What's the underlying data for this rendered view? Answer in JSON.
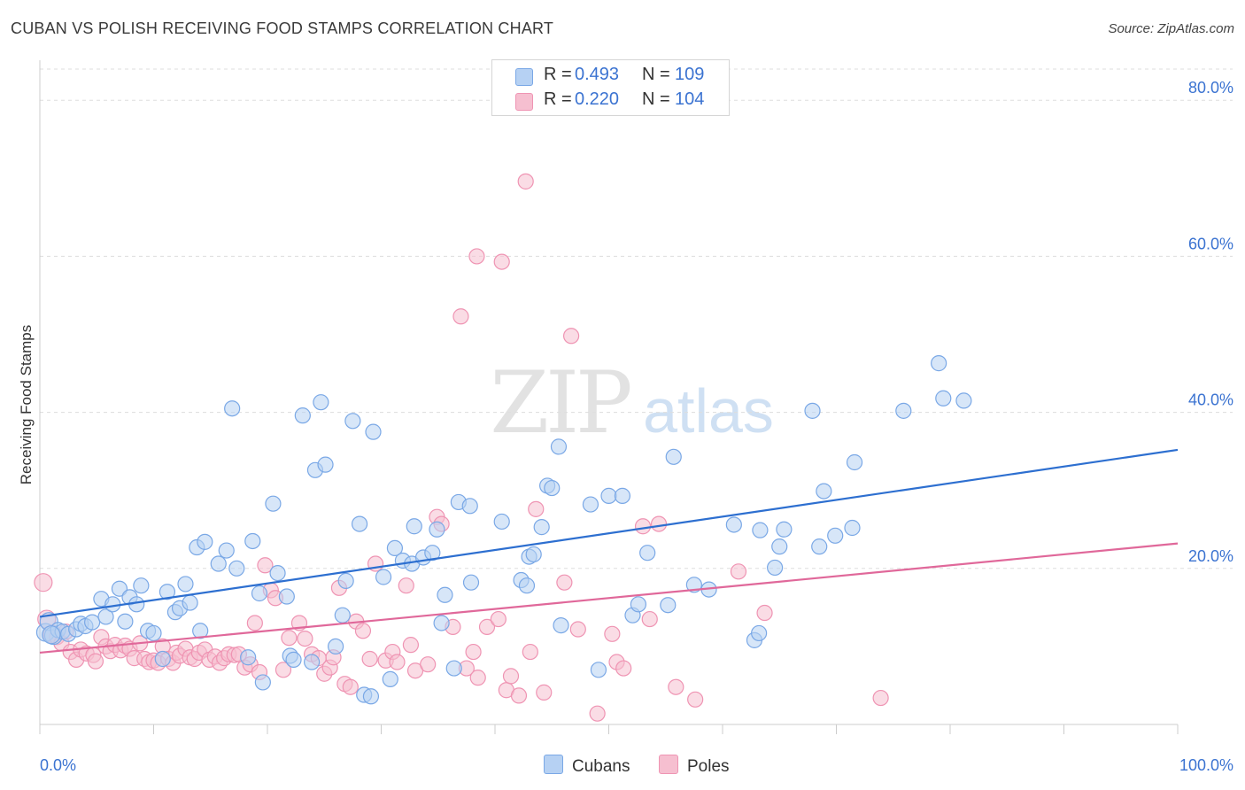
{
  "title": "CUBAN VS POLISH RECEIVING FOOD STAMPS CORRELATION CHART",
  "source": "Source: ZipAtlas.com",
  "watermark": {
    "zip": "ZIP",
    "atlas": "atlas"
  },
  "legend": {
    "r_label": "R =",
    "n_label": "N =",
    "rows": [
      {
        "r": "0.493",
        "n": "109"
      },
      {
        "r": "0.220",
        "n": "104"
      }
    ]
  },
  "colors": {
    "cubans_fill": "#b6d1f3",
    "cubans_stroke": "#7aa8e6",
    "cubans_line": "#2d6fd0",
    "poles_fill": "#f6bfd0",
    "poles_stroke": "#ef94b3",
    "poles_line": "#e0689a",
    "axis_text": "#3b73d1",
    "grid": "#dddddd"
  },
  "chart_data": {
    "type": "scatter",
    "title": "CUBAN VS POLISH RECEIVING FOOD STAMPS CORRELATION CHART",
    "xlabel": "",
    "ylabel": "Receiving Food Stamps",
    "xlim": [
      0,
      100
    ],
    "ylim": [
      0,
      84
    ],
    "x_tick_labels": [
      "0.0%",
      "100.0%"
    ],
    "y_ticks": [
      20,
      40,
      60,
      80
    ],
    "y_tick_labels": [
      "20.0%",
      "40.0%",
      "60.0%",
      "80.0%"
    ],
    "grid": true,
    "legend_position": "top-center",
    "series": [
      {
        "name": "Cubans",
        "r": 0.493,
        "n": 109,
        "trend": {
          "x": [
            0,
            100
          ],
          "y": [
            13.8,
            35.2
          ]
        },
        "points": [
          [
            0.5,
            11.8
          ],
          [
            0.8,
            13.2
          ],
          [
            1.2,
            11.4
          ],
          [
            1.6,
            12.1
          ],
          [
            2.0,
            11.9
          ],
          [
            2.5,
            11.6
          ],
          [
            3.2,
            12.2
          ],
          [
            3.6,
            12.9
          ],
          [
            4.0,
            12.6
          ],
          [
            4.6,
            13.1
          ],
          [
            5.4,
            16.1
          ],
          [
            5.8,
            13.8
          ],
          [
            6.4,
            15.4
          ],
          [
            7.0,
            17.4
          ],
          [
            7.5,
            13.2
          ],
          [
            7.9,
            16.3
          ],
          [
            8.5,
            15.4
          ],
          [
            8.9,
            17.8
          ],
          [
            9.5,
            12.0
          ],
          [
            10.0,
            11.7
          ],
          [
            10.8,
            8.4
          ],
          [
            11.2,
            17.0
          ],
          [
            11.9,
            14.4
          ],
          [
            12.3,
            14.9
          ],
          [
            12.8,
            18.0
          ],
          [
            13.2,
            15.6
          ],
          [
            13.8,
            22.7
          ],
          [
            14.1,
            12.0
          ],
          [
            14.5,
            23.4
          ],
          [
            15.7,
            20.6
          ],
          [
            16.4,
            22.3
          ],
          [
            16.9,
            40.5
          ],
          [
            17.3,
            20.0
          ],
          [
            18.3,
            8.6
          ],
          [
            18.7,
            23.5
          ],
          [
            19.3,
            16.8
          ],
          [
            19.6,
            5.4
          ],
          [
            20.5,
            28.3
          ],
          [
            20.9,
            19.4
          ],
          [
            21.7,
            16.4
          ],
          [
            22.0,
            8.8
          ],
          [
            22.3,
            8.3
          ],
          [
            23.1,
            39.6
          ],
          [
            23.9,
            8.0
          ],
          [
            24.2,
            32.6
          ],
          [
            24.7,
            41.3
          ],
          [
            25.1,
            33.3
          ],
          [
            26.0,
            10.0
          ],
          [
            26.6,
            14.0
          ],
          [
            26.9,
            18.4
          ],
          [
            27.5,
            38.9
          ],
          [
            28.1,
            25.7
          ],
          [
            28.5,
            3.8
          ],
          [
            29.1,
            3.6
          ],
          [
            29.3,
            37.5
          ],
          [
            30.2,
            18.9
          ],
          [
            30.8,
            5.8
          ],
          [
            31.2,
            22.6
          ],
          [
            31.9,
            21.0
          ],
          [
            32.7,
            20.6
          ],
          [
            32.9,
            25.4
          ],
          [
            33.7,
            21.4
          ],
          [
            34.5,
            22.0
          ],
          [
            34.9,
            25.0
          ],
          [
            35.3,
            13.0
          ],
          [
            35.6,
            16.6
          ],
          [
            36.4,
            7.2
          ],
          [
            36.8,
            28.5
          ],
          [
            37.8,
            28.0
          ],
          [
            37.9,
            18.2
          ],
          [
            40.6,
            26.0
          ],
          [
            42.3,
            18.5
          ],
          [
            42.8,
            17.8
          ],
          [
            43.0,
            21.5
          ],
          [
            43.4,
            21.8
          ],
          [
            44.1,
            25.3
          ],
          [
            44.6,
            30.6
          ],
          [
            45.0,
            30.3
          ],
          [
            45.6,
            35.6
          ],
          [
            45.8,
            12.7
          ],
          [
            48.4,
            28.2
          ],
          [
            49.1,
            7.0
          ],
          [
            50.0,
            29.3
          ],
          [
            51.2,
            29.3
          ],
          [
            52.1,
            14.0
          ],
          [
            52.6,
            15.4
          ],
          [
            53.4,
            22.0
          ],
          [
            55.2,
            15.3
          ],
          [
            55.7,
            34.3
          ],
          [
            57.5,
            17.9
          ],
          [
            58.8,
            17.3
          ],
          [
            61.0,
            25.6
          ],
          [
            62.8,
            10.8
          ],
          [
            63.2,
            11.7
          ],
          [
            63.3,
            24.9
          ],
          [
            64.6,
            20.1
          ],
          [
            65.0,
            22.8
          ],
          [
            65.4,
            25.0
          ],
          [
            67.9,
            40.2
          ],
          [
            68.5,
            22.8
          ],
          [
            68.9,
            29.9
          ],
          [
            69.9,
            24.2
          ],
          [
            71.4,
            25.2
          ],
          [
            71.6,
            33.6
          ],
          [
            75.9,
            40.2
          ],
          [
            79.0,
            46.3
          ],
          [
            79.4,
            41.8
          ],
          [
            81.2,
            41.5
          ],
          [
            1.0,
            11.5
          ]
        ]
      },
      {
        "name": "Poles",
        "r": 0.22,
        "n": 104,
        "trend": {
          "x": [
            0,
            100
          ],
          "y": [
            9.2,
            23.2
          ]
        },
        "points": [
          [
            0.3,
            18.2
          ],
          [
            0.6,
            13.5
          ],
          [
            1.1,
            11.6
          ],
          [
            1.5,
            11.2
          ],
          [
            1.9,
            10.4
          ],
          [
            2.3,
            11.9
          ],
          [
            2.7,
            9.3
          ],
          [
            3.2,
            8.3
          ],
          [
            3.6,
            9.6
          ],
          [
            4.1,
            9.1
          ],
          [
            4.7,
            8.9
          ],
          [
            4.9,
            8.1
          ],
          [
            5.4,
            11.2
          ],
          [
            5.8,
            10.0
          ],
          [
            6.2,
            9.4
          ],
          [
            6.6,
            10.2
          ],
          [
            7.1,
            9.5
          ],
          [
            7.5,
            10.1
          ],
          [
            7.9,
            9.7
          ],
          [
            8.3,
            8.5
          ],
          [
            8.8,
            10.4
          ],
          [
            9.2,
            8.4
          ],
          [
            9.6,
            8.0
          ],
          [
            10.0,
            8.2
          ],
          [
            10.4,
            7.9
          ],
          [
            10.8,
            10.0
          ],
          [
            11.3,
            8.4
          ],
          [
            11.7,
            7.9
          ],
          [
            12.0,
            9.2
          ],
          [
            12.3,
            8.8
          ],
          [
            12.8,
            9.7
          ],
          [
            13.2,
            8.6
          ],
          [
            13.6,
            8.4
          ],
          [
            14.0,
            9.2
          ],
          [
            14.5,
            9.6
          ],
          [
            14.9,
            8.3
          ],
          [
            15.4,
            8.7
          ],
          [
            15.8,
            7.9
          ],
          [
            16.2,
            8.5
          ],
          [
            16.6,
            9.0
          ],
          [
            17.1,
            8.9
          ],
          [
            17.5,
            9.0
          ],
          [
            18.0,
            7.3
          ],
          [
            18.5,
            7.7
          ],
          [
            18.9,
            13.0
          ],
          [
            19.3,
            6.7
          ],
          [
            19.8,
            20.4
          ],
          [
            20.3,
            17.2
          ],
          [
            20.7,
            16.2
          ],
          [
            21.4,
            7.0
          ],
          [
            21.9,
            11.1
          ],
          [
            22.8,
            13.0
          ],
          [
            23.3,
            11.0
          ],
          [
            23.9,
            9.0
          ],
          [
            24.5,
            8.5
          ],
          [
            25.0,
            6.5
          ],
          [
            25.5,
            7.3
          ],
          [
            25.8,
            8.6
          ],
          [
            26.3,
            17.5
          ],
          [
            26.8,
            5.2
          ],
          [
            27.3,
            4.8
          ],
          [
            27.8,
            13.2
          ],
          [
            28.4,
            12.0
          ],
          [
            29.0,
            8.4
          ],
          [
            29.5,
            20.6
          ],
          [
            30.4,
            8.2
          ],
          [
            31.0,
            9.3
          ],
          [
            31.4,
            8.0
          ],
          [
            32.2,
            17.8
          ],
          [
            32.6,
            10.2
          ],
          [
            33.0,
            6.9
          ],
          [
            34.1,
            7.7
          ],
          [
            34.9,
            26.6
          ],
          [
            35.3,
            25.7
          ],
          [
            36.3,
            12.5
          ],
          [
            37.5,
            7.2
          ],
          [
            38.1,
            9.3
          ],
          [
            38.5,
            6.0
          ],
          [
            39.3,
            12.5
          ],
          [
            40.3,
            13.5
          ],
          [
            41.0,
            4.4
          ],
          [
            41.4,
            6.2
          ],
          [
            42.1,
            3.7
          ],
          [
            43.1,
            9.3
          ],
          [
            43.6,
            27.6
          ],
          [
            44.3,
            4.1
          ],
          [
            46.1,
            18.2
          ],
          [
            47.3,
            12.2
          ],
          [
            49.0,
            1.4
          ],
          [
            50.3,
            11.6
          ],
          [
            50.7,
            8.0
          ],
          [
            51.3,
            7.2
          ],
          [
            53.0,
            25.4
          ],
          [
            53.6,
            13.5
          ],
          [
            54.4,
            25.7
          ],
          [
            55.9,
            4.8
          ],
          [
            57.6,
            3.2
          ],
          [
            61.4,
            19.6
          ],
          [
            63.7,
            14.3
          ],
          [
            73.9,
            3.4
          ],
          [
            42.7,
            69.6
          ],
          [
            38.4,
            60.0
          ],
          [
            40.6,
            59.3
          ],
          [
            37.0,
            52.3
          ],
          [
            46.7,
            49.8
          ]
        ]
      }
    ]
  },
  "bottom_legend": [
    "Cubans",
    "Poles"
  ]
}
